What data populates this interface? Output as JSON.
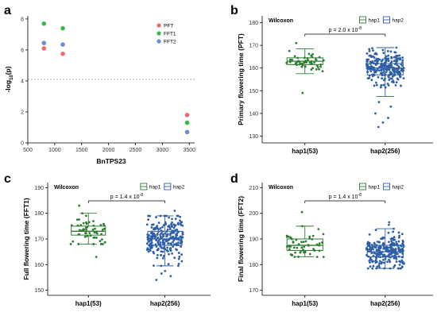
{
  "colors": {
    "hap1": "#2e7d32",
    "hap2": "#2f5fa8",
    "PFT": "#ef6b6b",
    "FFT1": "#3cb54a",
    "FFT2": "#6a8fd0",
    "threshold": "#888888"
  },
  "chart_data": [
    {
      "id": "a",
      "letter": "a",
      "type": "scatter",
      "xlabel": "BnTPS23",
      "ylabel": "-log10(p)",
      "xlim": [
        500,
        3600
      ],
      "ylim": [
        0,
        8.2
      ],
      "xticks": [
        "500",
        "1000",
        "1500",
        "2000",
        "2500",
        "3000",
        "3500"
      ],
      "yticks": [
        "0",
        "2",
        "4",
        "6",
        "8"
      ],
      "threshold": 4.1,
      "legend": [
        "PFT",
        "FFT1",
        "FFT2"
      ],
      "series": [
        {
          "name": "PFT",
          "x": [
            800,
            1150,
            3460
          ],
          "y": [
            6.1,
            5.75,
            1.8
          ]
        },
        {
          "name": "FFT1",
          "x": [
            800,
            1150,
            3460
          ],
          "y": [
            7.7,
            7.4,
            1.3
          ]
        },
        {
          "name": "FFT2",
          "x": [
            800,
            1150,
            3460
          ],
          "y": [
            6.45,
            6.35,
            0.7
          ]
        }
      ]
    },
    {
      "id": "b",
      "letter": "b",
      "type": "box",
      "test": "Wilcoxon",
      "legend": [
        "hap1",
        "hap2"
      ],
      "pvalue_text": "p = 2.0 x 10",
      "pvalue_exp": "-8",
      "ylabel": "Primary flowering time (PFT)",
      "ylim": [
        127,
        183
      ],
      "yticks": [
        130,
        140,
        150,
        160,
        170,
        180
      ],
      "categories": [
        "hap1(53)",
        "hap2(256)"
      ],
      "boxes": [
        {
          "name": "hap1",
          "n": 53,
          "min": 157.5,
          "q1": 161.5,
          "median": 163,
          "q3": 164.5,
          "max": 168.5,
          "outliers": [
            149,
            171
          ]
        },
        {
          "name": "hap2",
          "n": 256,
          "min": 147.5,
          "q1": 157,
          "median": 160,
          "q3": 162,
          "max": 169,
          "outliers": [
            134,
            136,
            138,
            140,
            143,
            145
          ]
        }
      ]
    },
    {
      "id": "c",
      "letter": "c",
      "type": "box",
      "test": "Wilcoxon",
      "legend": [
        "hap1",
        "hap2"
      ],
      "pvalue_text": "p = 1.4 x 10",
      "pvalue_exp": "-8",
      "ylabel": "Full flowering time (FFT1)",
      "ylim": [
        148,
        192
      ],
      "yticks": [
        150,
        160,
        170,
        180,
        190
      ],
      "categories": [
        "hap1(53)",
        "hap2(256)"
      ],
      "boxes": [
        {
          "name": "hap1",
          "n": 53,
          "min": 168,
          "q1": 171.5,
          "median": 173,
          "q3": 175,
          "max": 180,
          "outliers": [
            163,
            183
          ]
        },
        {
          "name": "hap2",
          "n": 256,
          "min": 159.5,
          "q1": 167.5,
          "median": 170,
          "q3": 173,
          "max": 179,
          "outliers": [
            154,
            155.5,
            156.5,
            157.5,
            181
          ]
        }
      ]
    },
    {
      "id": "d",
      "letter": "d",
      "type": "box",
      "test": "Wilcoxon",
      "legend": [
        "hap1",
        "hap2"
      ],
      "pvalue_text": "p = 1.4 x 10",
      "pvalue_exp": "-8",
      "ylabel": "Final flowering time (FFT2)",
      "ylim": [
        168,
        212
      ],
      "yticks": [
        170,
        180,
        190,
        200,
        210
      ],
      "categories": [
        "hap1(53)",
        "hap2(256)"
      ],
      "boxes": [
        {
          "name": "hap1",
          "n": 53,
          "min": 183,
          "q1": 185.5,
          "median": 187.5,
          "q3": 190,
          "max": 195,
          "outliers": [
            200.5
          ]
        },
        {
          "name": "hap2",
          "n": 256,
          "min": 178.5,
          "q1": 183,
          "median": 185,
          "q3": 187.5,
          "max": 194,
          "outliers": [
            195.5,
            196.5
          ]
        }
      ]
    }
  ]
}
